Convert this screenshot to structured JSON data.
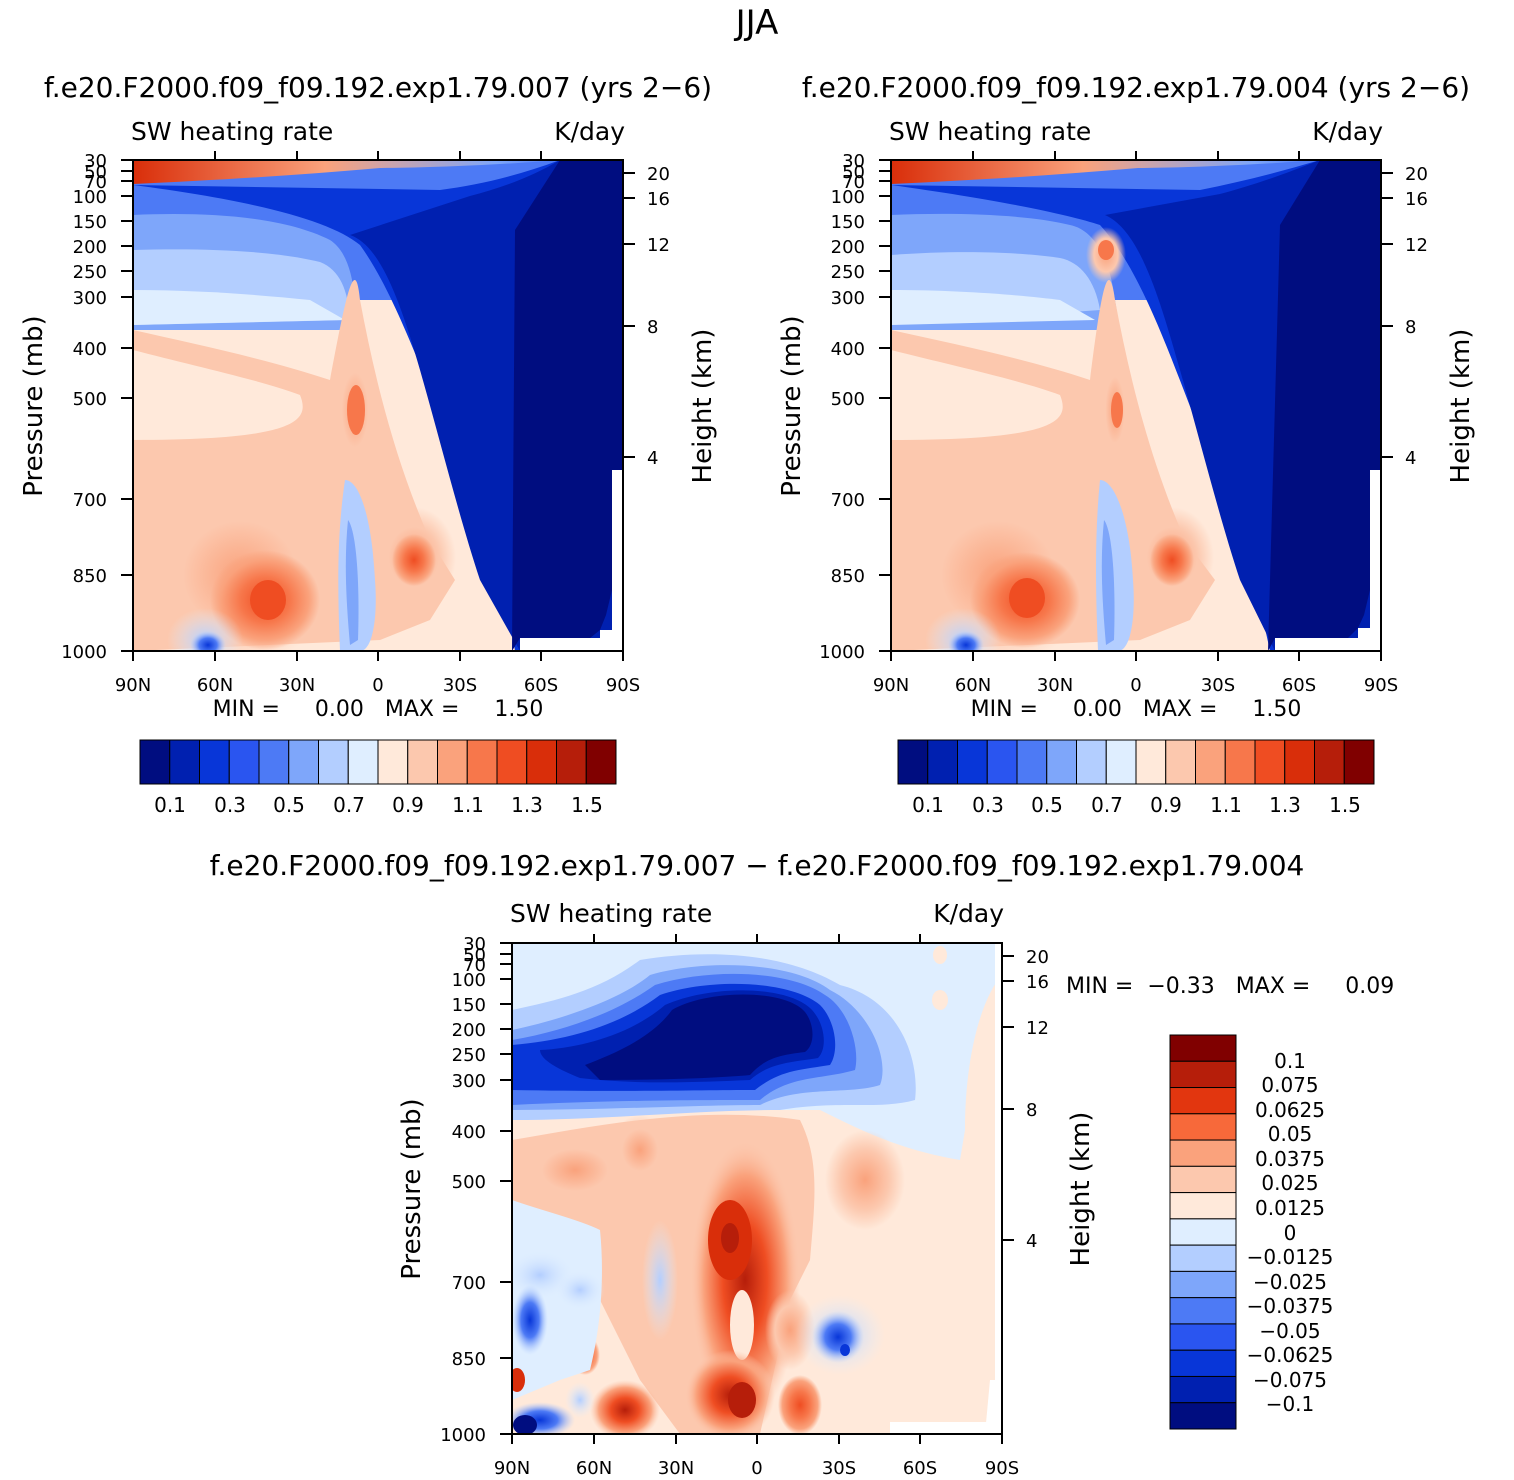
{
  "page_title": "JJA",
  "chart_data": [
    {
      "type": "heatmap",
      "id": "p1",
      "case_title": "f.e20.F2000.f09_f09.192.exp1.79.007 (yrs 2−6)",
      "field_label": "SW heating rate",
      "units": "K/day",
      "xlabel": "",
      "ylabel": "Pressure (mb)",
      "ylabel_right": "Height (km)",
      "x_ticks": [
        "90N",
        "60N",
        "30N",
        "0",
        "30S",
        "60S",
        "90S"
      ],
      "y_ticks": [
        "30",
        "50",
        "70",
        "100",
        "150",
        "200",
        "250",
        "300",
        "400",
        "500",
        "700",
        "850",
        "1000"
      ],
      "height_ticks": [
        "20",
        "16",
        "12",
        "8",
        "4"
      ],
      "min_max_text": "MIN =     0.00   MAX =     1.50",
      "colorbar_labels": [
        "0.1",
        "0.3",
        "0.5",
        "0.7",
        "0.9",
        "1.1",
        "1.3",
        "1.5"
      ],
      "colorbar_colors": [
        "#000d80",
        "#0020b0",
        "#0836d8",
        "#2a55f0",
        "#4d7af5",
        "#7ea6fa",
        "#b3ceff",
        "#dfeeff",
        "#ffe9da",
        "#fcc8ae",
        "#faa27c",
        "#f7774b",
        "#ef4d22",
        "#d92e0a",
        "#b61e0a",
        "#800000"
      ]
    },
    {
      "type": "heatmap",
      "id": "p2",
      "case_title": "f.e20.F2000.f09_f09.192.exp1.79.004 (yrs 2−6)",
      "field_label": "SW heating rate",
      "units": "K/day",
      "xlabel": "",
      "ylabel": "Pressure (mb)",
      "ylabel_right": "Height (km)",
      "x_ticks": [
        "90N",
        "60N",
        "30N",
        "0",
        "30S",
        "60S",
        "90S"
      ],
      "y_ticks": [
        "30",
        "50",
        "70",
        "100",
        "150",
        "200",
        "250",
        "300",
        "400",
        "500",
        "700",
        "850",
        "1000"
      ],
      "height_ticks": [
        "20",
        "16",
        "12",
        "8",
        "4"
      ],
      "min_max_text": "MIN =     0.00   MAX =     1.50",
      "colorbar_labels": [
        "0.1",
        "0.3",
        "0.5",
        "0.7",
        "0.9",
        "1.1",
        "1.3",
        "1.5"
      ],
      "colorbar_colors": [
        "#000d80",
        "#0020b0",
        "#0836d8",
        "#2a55f0",
        "#4d7af5",
        "#7ea6fa",
        "#b3ceff",
        "#dfeeff",
        "#ffe9da",
        "#fcc8ae",
        "#faa27c",
        "#f7774b",
        "#ef4d22",
        "#d92e0a",
        "#b61e0a",
        "#800000"
      ]
    },
    {
      "type": "heatmap",
      "id": "p3",
      "case_title": "f.e20.F2000.f09_f09.192.exp1.79.007 − f.e20.F2000.f09_f09.192.exp1.79.004",
      "field_label": "SW heating rate",
      "units": "K/day",
      "xlabel": "",
      "ylabel": "Pressure (mb)",
      "ylabel_right": "Height (km)",
      "x_ticks": [
        "90N",
        "60N",
        "30N",
        "0",
        "30S",
        "60S",
        "90S"
      ],
      "y_ticks": [
        "30",
        "50",
        "70",
        "100",
        "150",
        "200",
        "250",
        "300",
        "400",
        "500",
        "700",
        "850",
        "1000"
      ],
      "height_ticks": [
        "20",
        "16",
        "12",
        "8",
        "4"
      ],
      "min_max_text": "MIN =  −0.33   MAX =     0.09",
      "colorbar_labels": [
        "0.1",
        "0.075",
        "0.0625",
        "0.05",
        "0.0375",
        "0.025",
        "0.0125",
        "0",
        "−0.0125",
        "−0.025",
        "−0.0375",
        "−0.05",
        "−0.0625",
        "−0.075",
        "−0.1"
      ],
      "colorbar_colors": [
        "#800000",
        "#b61e0a",
        "#e2360f",
        "#f7693a",
        "#faa27c",
        "#fcc8ae",
        "#ffe9da",
        "#dfeeff",
        "#b3ceff",
        "#7ea6fa",
        "#4d7af5",
        "#2a55f0",
        "#0836d8",
        "#0020b0",
        "#000d80"
      ]
    }
  ]
}
